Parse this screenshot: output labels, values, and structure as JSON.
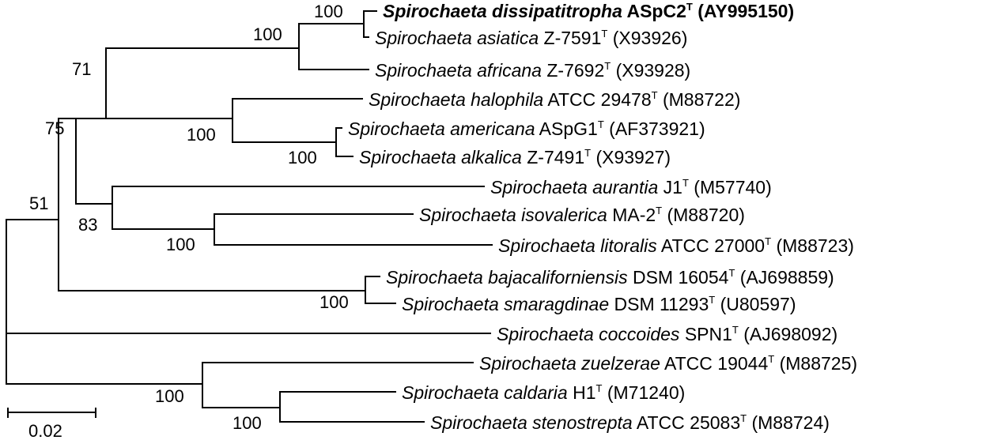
{
  "taxa": [
    {
      "id": "dissipatitropha",
      "genus": "Spirochaeta",
      "species": "dissipatitropha",
      "strain": "ASpC2",
      "superscript": "T",
      "accession": "(AY995150)",
      "bold": true
    },
    {
      "id": "asiatica",
      "genus": "Spirochaeta",
      "species": "asiatica",
      "strain": "Z-7591",
      "superscript": "T",
      "accession": "(X93926)"
    },
    {
      "id": "africana",
      "genus": "Spirochaeta",
      "species": "africana",
      "strain": "Z-7692",
      "superscript": "T",
      "accession": "(X93928)"
    },
    {
      "id": "halophila",
      "genus": "Spirochaeta",
      "species": "halophila",
      "strain": "ATCC 29478",
      "superscript": "T",
      "accession": "(M88722)"
    },
    {
      "id": "americana",
      "genus": "Spirochaeta",
      "species": "americana",
      "strain": "ASpG1",
      "superscript": "T",
      "accession": "(AF373921)"
    },
    {
      "id": "alkalica",
      "genus": "Spirochaeta",
      "species": "alkalica",
      "strain": "Z-7491",
      "superscript": "T",
      "accession": "(X93927)"
    },
    {
      "id": "aurantia",
      "genus": "Spirochaeta",
      "species": "aurantia",
      "strain": "J1",
      "superscript": "T",
      "accession": "(M57740)"
    },
    {
      "id": "isovalerica",
      "genus": "Spirochaeta",
      "species": "isovalerica",
      "strain": "MA-2",
      "superscript": "T",
      "accession": "(M88720)"
    },
    {
      "id": "litoralis",
      "genus": "Spirochaeta",
      "species": "litoralis",
      "strain": "ATCC 27000",
      "superscript": "T",
      "accession": "(M88723)"
    },
    {
      "id": "bajacaliforniensis",
      "genus": "Spirochaeta",
      "species": "bajacaliforniensis",
      "strain": "DSM 16054",
      "superscript": "T",
      "accession": "(AJ698859)"
    },
    {
      "id": "smaragdinae",
      "genus": "Spirochaeta",
      "species": "smaragdinae",
      "strain": "DSM 11293",
      "superscript": "T",
      "accession": "(U80597)"
    },
    {
      "id": "coccoides",
      "genus": "Spirochaeta",
      "species": "coccoides",
      "strain": "SPN1",
      "superscript": "T",
      "accession": "(AJ698092)"
    },
    {
      "id": "zuelzerae",
      "genus": "Spirochaeta",
      "species": "zuelzerae",
      "strain": "ATCC 19044",
      "superscript": "T",
      "accession": "(M88725)"
    },
    {
      "id": "caldaria",
      "genus": "Spirochaeta",
      "species": "caldaria",
      "strain": "H1",
      "superscript": "T",
      "accession": "(M71240)"
    },
    {
      "id": "stenostrepta",
      "genus": "Spirochaeta",
      "species": "stenostrepta",
      "strain": "ATCC 25083",
      "superscript": "T",
      "accession": "(M88724)"
    }
  ],
  "bootstrap": {
    "dissipatitropha_asiatica": "100",
    "asiatica_group": "100",
    "asiatica_group_halophila_group": "71",
    "halophila_group": "100",
    "americana_alkalica": "100",
    "aurantia_group": "83",
    "isovalerica_litoralis": "100",
    "main_clade": "75",
    "bajacaliforniensis_smaragdinae": "100",
    "deep_split": "51",
    "zuelzerae_group": "100",
    "caldaria_stenostrepta": "100"
  },
  "scale_bar": {
    "label": "0.02",
    "value": 0.02
  }
}
